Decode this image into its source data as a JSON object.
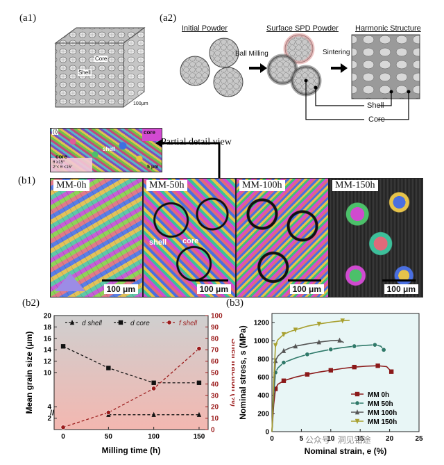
{
  "panels": {
    "a1": {
      "label": "(a1)",
      "core": "Core",
      "shell": "Shell",
      "scale": "100μm"
    },
    "a2": {
      "label": "(a2)",
      "titles": [
        "Initial Powder",
        "Surface SPD Powder",
        "Harmonic Structure"
      ],
      "ball_milling": "Ball Milling",
      "sintering": "Sintering",
      "shell": "Shell",
      "core": "Core"
    },
    "detail": {
      "label": "(i)",
      "core_top": "core",
      "shell": "shell",
      "core_bottom": "core",
      "legend1": "θ ≥15°",
      "legend2": "2°< θ <15°",
      "scale": "5 μm",
      "caption": "Partial detail view"
    },
    "b1": {
      "label": "(b1)",
      "images": [
        {
          "name": "MM-0h",
          "scale": "100 μm"
        },
        {
          "name": "MM-50h",
          "scale": "100 μm",
          "shell": "shell",
          "core": "core"
        },
        {
          "name": "MM-100h",
          "scale": "100 μm"
        },
        {
          "name": "MM-150h",
          "scale": "100 μm"
        }
      ]
    },
    "b2": {
      "label": "(b2)"
    },
    "b3": {
      "label": "(b3)"
    }
  },
  "watermark": "公众号 · 洞见钴途",
  "chart_data": [
    {
      "id": "b2",
      "type": "line",
      "x": [
        0,
        50,
        100,
        150
      ],
      "xlabel": "Milling time (h)",
      "ylabel": "Mean grain size (μm)",
      "y2label": "Shell fraction (%)",
      "xlim": [
        -10,
        160
      ],
      "ylim": [
        0,
        20
      ],
      "y2lim": [
        0,
        100
      ],
      "xticks": [
        "0",
        "50",
        "100",
        "150"
      ],
      "yticks": [
        "2",
        "4",
        "10",
        "12",
        "14",
        "16",
        "18",
        "20"
      ],
      "y2ticks": [
        "0",
        "10",
        "20",
        "30",
        "40",
        "50",
        "60",
        "70",
        "80",
        "90",
        "100"
      ],
      "series": [
        {
          "name": "d shell",
          "axis": "left",
          "values": [
            null,
            2.6,
            2.6,
            2.6
          ],
          "color": "#111111",
          "marker": "triangle"
        },
        {
          "name": "d core",
          "axis": "left",
          "values": [
            14.6,
            10.8,
            8.2,
            8.2
          ],
          "color": "#111111",
          "marker": "square"
        },
        {
          "name": "f shell",
          "axis": "right",
          "values": [
            2,
            15,
            36,
            71
          ],
          "color": "#9b1b1b",
          "marker": "circle"
        }
      ],
      "legend": "top"
    },
    {
      "id": "b3",
      "type": "line",
      "xlabel": "Nominal strain, e (%)",
      "ylabel": "Nominal stress, s (MPa)",
      "xlim": [
        0,
        25
      ],
      "ylim": [
        0,
        1300
      ],
      "xticks": [
        "0",
        "5",
        "10",
        "15",
        "20",
        "25"
      ],
      "yticks": [
        "0",
        "200",
        "400",
        "600",
        "800",
        "1000",
        "1200"
      ],
      "series": [
        {
          "name": "MM 0h",
          "color": "#8b1a1a",
          "marker": "square",
          "x": [
            0,
            0.3,
            0.6,
            1,
            2,
            4,
            6,
            8,
            10,
            12,
            14,
            16,
            18,
            19.5,
            20.3
          ],
          "y": [
            0,
            300,
            470,
            520,
            560,
            600,
            630,
            655,
            675,
            695,
            710,
            720,
            725,
            715,
            660
          ]
        },
        {
          "name": "MM 50h",
          "color": "#2f7a6a",
          "marker": "circle",
          "x": [
            0,
            0.3,
            0.6,
            1,
            2,
            4,
            6,
            8,
            10,
            12,
            14,
            16,
            17.5,
            18.5,
            19
          ],
          "y": [
            0,
            400,
            650,
            700,
            760,
            810,
            850,
            880,
            905,
            925,
            940,
            950,
            955,
            940,
            900
          ]
        },
        {
          "name": "MM 100h",
          "color": "#555555",
          "marker": "triangle-up",
          "x": [
            0,
            0.3,
            0.6,
            1,
            2,
            3,
            4,
            6,
            8,
            10,
            11.5,
            12.2
          ],
          "y": [
            0,
            480,
            780,
            830,
            890,
            920,
            940,
            965,
            985,
            1000,
            1005,
            980
          ]
        },
        {
          "name": "MM 150h",
          "color": "#a8a030",
          "marker": "triangle-down",
          "x": [
            0,
            0.3,
            0.6,
            1,
            2,
            3,
            4,
            6,
            8,
            10,
            12,
            13.2
          ],
          "y": [
            0,
            550,
            950,
            1010,
            1070,
            1100,
            1120,
            1160,
            1185,
            1205,
            1220,
            1225
          ]
        }
      ],
      "legend": "bottom-right"
    }
  ]
}
